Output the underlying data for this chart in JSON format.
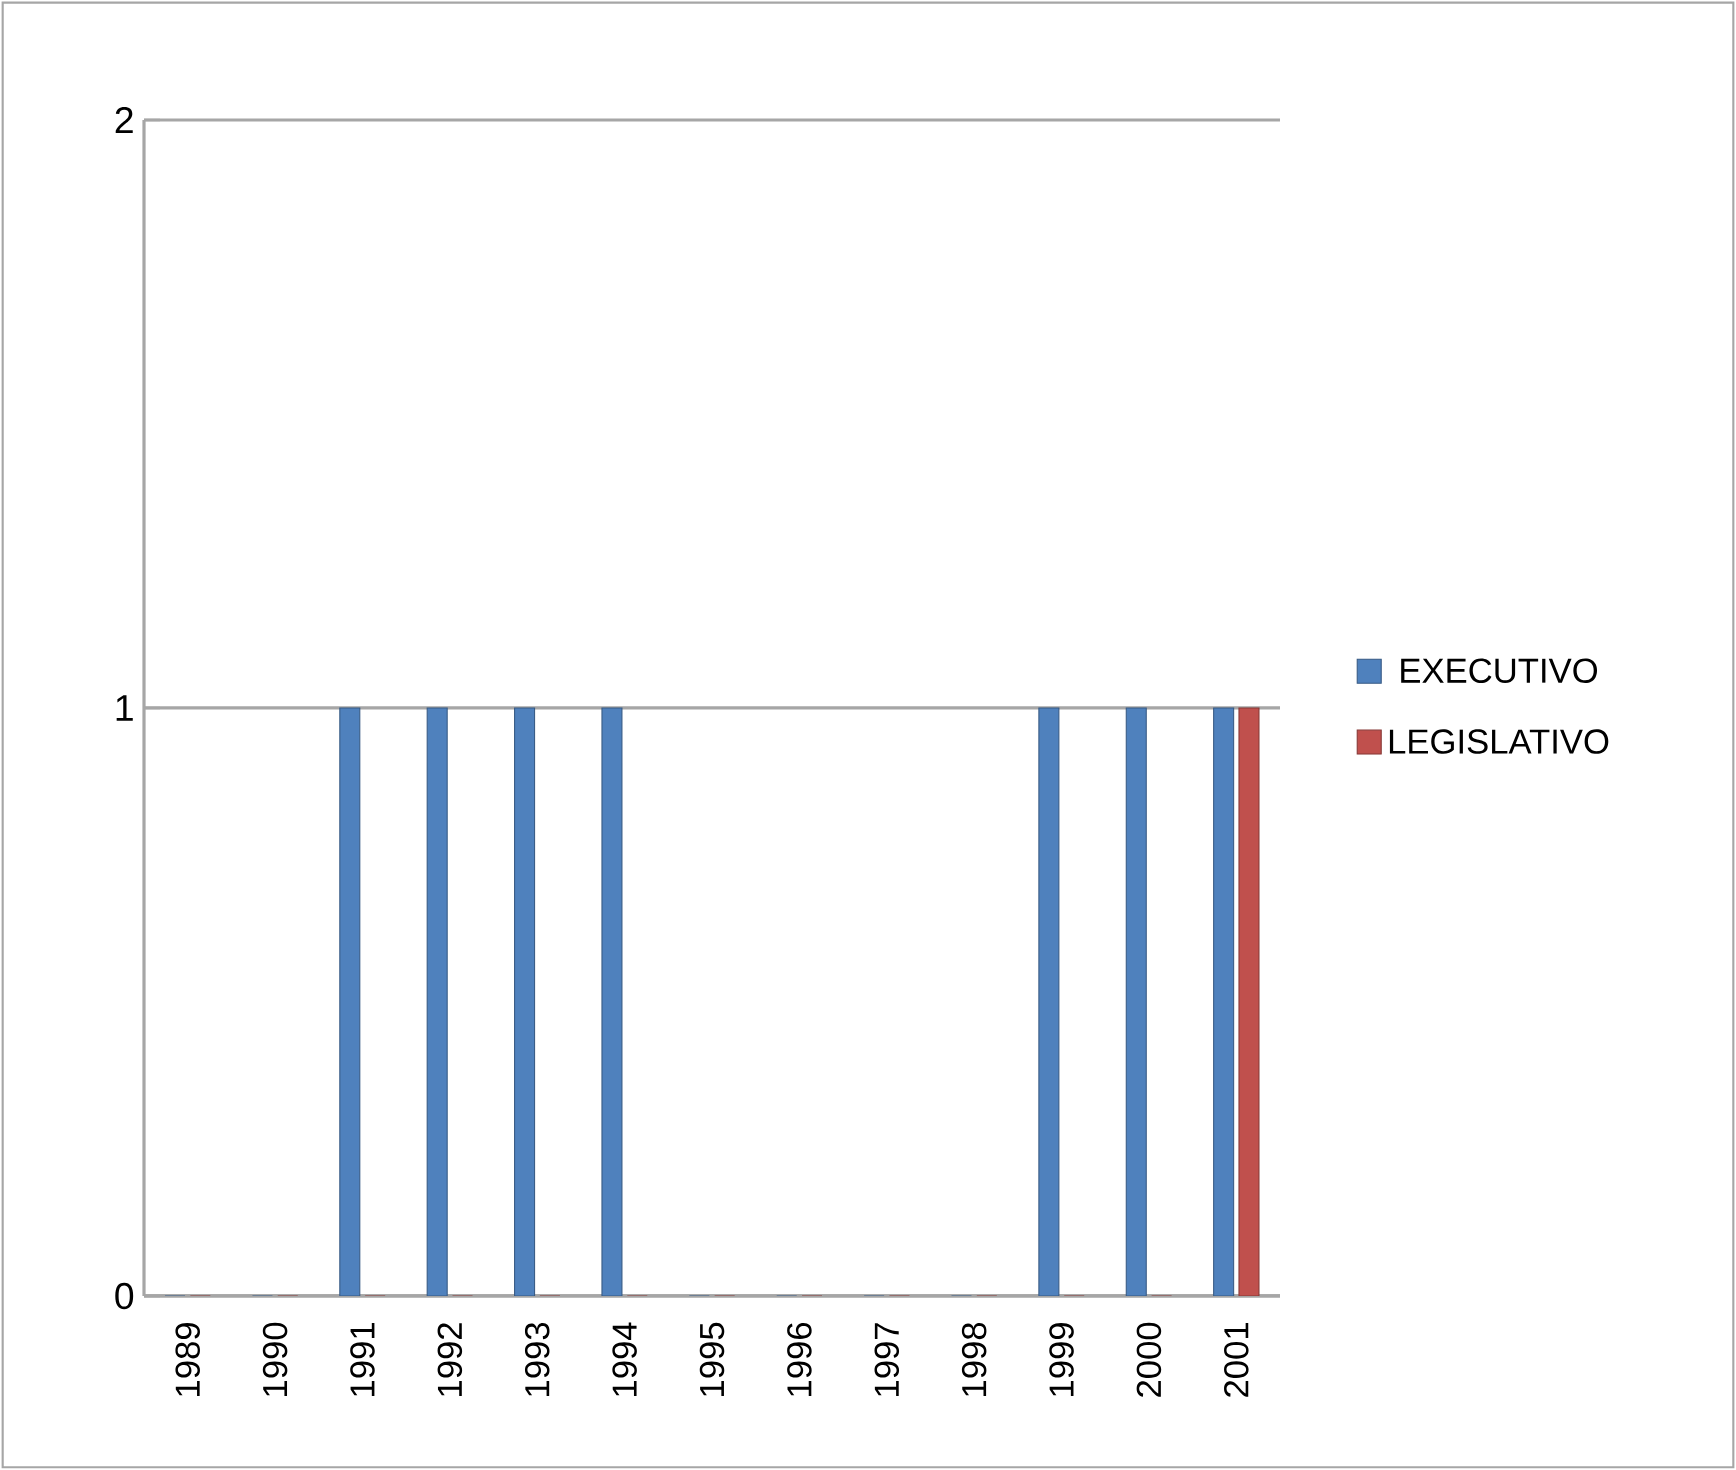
{
  "chart_data": {
    "type": "bar",
    "categories": [
      "1989",
      "1990",
      "1991",
      "1992",
      "1993",
      "1994",
      "1995",
      "1996",
      "1997",
      "1998",
      "1999",
      "2000",
      "2001"
    ],
    "series": [
      {
        "name": "EXECUTIVO",
        "color": "#4f81bd",
        "values": [
          0,
          0,
          1,
          1,
          1,
          1,
          0,
          0,
          0,
          0,
          1,
          1,
          1
        ]
      },
      {
        "name": "LEGISLATIVO",
        "color": "#c0504d",
        "values": [
          0,
          0,
          0,
          0,
          0,
          0,
          0,
          0,
          0,
          0,
          0,
          0,
          1
        ]
      }
    ],
    "ylim": [
      0,
      2
    ],
    "yticks": [
      0,
      1,
      2
    ],
    "grid": "y",
    "legend": "right"
  }
}
